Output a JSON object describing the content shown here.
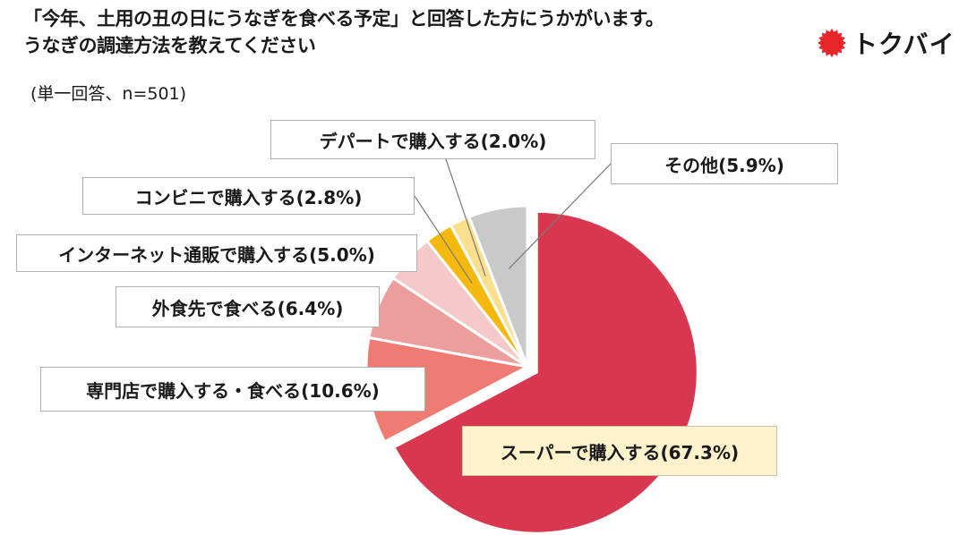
{
  "title_line1": "「今年、土用の丑の日にうなぎを食べる予定」と回答した方にうかがいます。",
  "title_line2": "うなぎの調達方法を教えてください",
  "note": "(単一回答、n=501)",
  "logo_text": "トクバイ",
  "colors": {
    "logo_sun": "#e8252a",
    "label_border": "#b0b0b0",
    "main_label_bg": "#fdf2cc"
  },
  "chart_data": {
    "type": "pie",
    "title": "「今年、土用の丑の日にうなぎを食べる予定」と回答した方にうかがいます。うなぎの調達方法を教えてください",
    "unit": "%",
    "start_angle": "12 o'clock",
    "direction": "clockwise",
    "exploded_slice": "スーパーで購入する",
    "slices": [
      {
        "label": "スーパーで購入する(67.3%)",
        "name": "スーパーで購入する",
        "value": 67.3,
        "color": "#d8374f"
      },
      {
        "label": "専門店で購入する・食べる(10.6%)",
        "name": "専門店で購入する・食べる",
        "value": 10.6,
        "color": "#f07b73"
      },
      {
        "label": "外食先で食べる(6.4%)",
        "name": "外食先で食べる",
        "value": 6.4,
        "color": "#ec9e9c"
      },
      {
        "label": "インターネット通販で購入する(5.0%)",
        "name": "インターネット通販で購入する",
        "value": 5.0,
        "color": "#f5c9c9"
      },
      {
        "label": "コンビニで購入する(2.8%)",
        "name": "コンビニで購入する",
        "value": 2.8,
        "color": "#f5b90e"
      },
      {
        "label": "デパートで購入する(2.0%)",
        "name": "デパートで購入する",
        "value": 2.0,
        "color": "#fadf8e"
      },
      {
        "label": "その他(5.9%)",
        "name": "その他",
        "value": 5.9,
        "color": "#c9c9c9"
      }
    ]
  }
}
